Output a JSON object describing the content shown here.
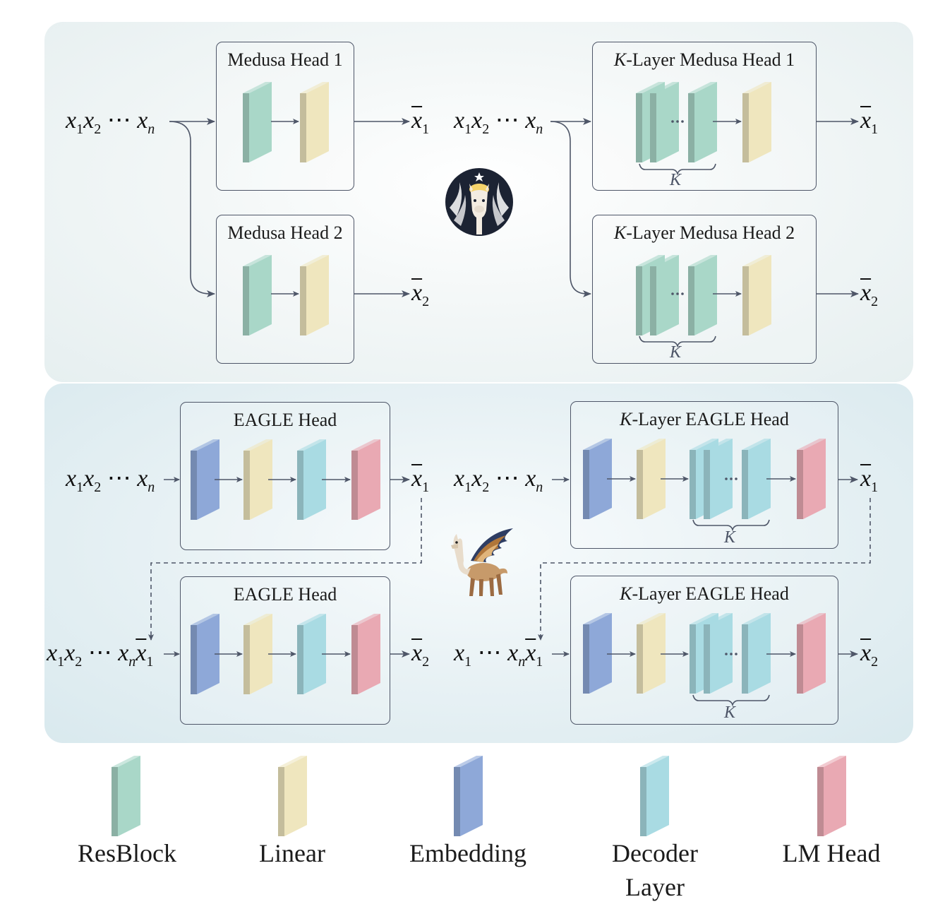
{
  "medusa": {
    "head1_title": "Medusa Head 1",
    "head2_title": "Medusa Head 2",
    "k_head1_title_k": "K",
    "k_head1_title_rest": "-Layer Medusa Head 1",
    "k_head2_title_k": "K",
    "k_head2_title_rest": "-Layer Medusa Head 2",
    "k_label": "K"
  },
  "eagle": {
    "head_title": "EAGLE Head",
    "k_head_title_k": "K",
    "k_head_title_rest": "-Layer EAGLE Head",
    "k_label": "K"
  },
  "tokens": {
    "x": "x",
    "sub1": "1",
    "sub2": "2",
    "subn": "n",
    "dots": "⋯"
  },
  "legend": [
    {
      "label": "ResBlock",
      "color": "#a9d7c8"
    },
    {
      "label": "Linear",
      "color": "#efe6be"
    },
    {
      "label": "Embedding",
      "color": "#8ea8d8"
    },
    {
      "label": "Decoder",
      "label2": "Layer",
      "color": "#a9dbe3"
    },
    {
      "label": "LM Head",
      "color": "#e9a9b3"
    }
  ],
  "colors": {
    "resblock": "#a9d7c8",
    "linear": "#efe6be",
    "embedding": "#8ea8d8",
    "decoder": "#a9dbe3",
    "lmhead": "#e9a9b3",
    "arrow": "#4e5668"
  },
  "icons": [
    "starbucks-llama-logo-icon",
    "winged-llama-eagle-icon"
  ]
}
